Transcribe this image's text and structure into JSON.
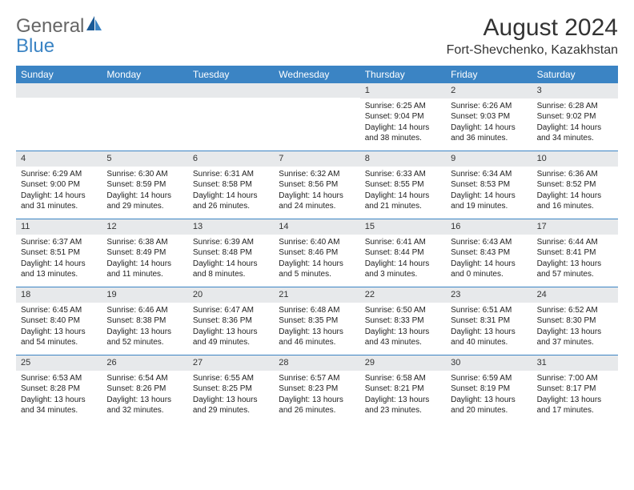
{
  "brand": {
    "general": "General",
    "blue": "Blue"
  },
  "title": "August 2024",
  "location": "Fort-Shevchenko, Kazakhstan",
  "colors": {
    "header_bg": "#3b84c4",
    "header_text": "#ffffff",
    "daynum_bg": "#e7e9eb",
    "text": "#222222",
    "divider": "#3b84c4",
    "page_bg": "#ffffff"
  },
  "dayNames": [
    "Sunday",
    "Monday",
    "Tuesday",
    "Wednesday",
    "Thursday",
    "Friday",
    "Saturday"
  ],
  "weeks": [
    [
      {
        "day": "",
        "sunrise": "",
        "sunset": "",
        "daylight": ""
      },
      {
        "day": "",
        "sunrise": "",
        "sunset": "",
        "daylight": ""
      },
      {
        "day": "",
        "sunrise": "",
        "sunset": "",
        "daylight": ""
      },
      {
        "day": "",
        "sunrise": "",
        "sunset": "",
        "daylight": ""
      },
      {
        "day": "1",
        "sunrise": "Sunrise: 6:25 AM",
        "sunset": "Sunset: 9:04 PM",
        "daylight": "Daylight: 14 hours and 38 minutes."
      },
      {
        "day": "2",
        "sunrise": "Sunrise: 6:26 AM",
        "sunset": "Sunset: 9:03 PM",
        "daylight": "Daylight: 14 hours and 36 minutes."
      },
      {
        "day": "3",
        "sunrise": "Sunrise: 6:28 AM",
        "sunset": "Sunset: 9:02 PM",
        "daylight": "Daylight: 14 hours and 34 minutes."
      }
    ],
    [
      {
        "day": "4",
        "sunrise": "Sunrise: 6:29 AM",
        "sunset": "Sunset: 9:00 PM",
        "daylight": "Daylight: 14 hours and 31 minutes."
      },
      {
        "day": "5",
        "sunrise": "Sunrise: 6:30 AM",
        "sunset": "Sunset: 8:59 PM",
        "daylight": "Daylight: 14 hours and 29 minutes."
      },
      {
        "day": "6",
        "sunrise": "Sunrise: 6:31 AM",
        "sunset": "Sunset: 8:58 PM",
        "daylight": "Daylight: 14 hours and 26 minutes."
      },
      {
        "day": "7",
        "sunrise": "Sunrise: 6:32 AM",
        "sunset": "Sunset: 8:56 PM",
        "daylight": "Daylight: 14 hours and 24 minutes."
      },
      {
        "day": "8",
        "sunrise": "Sunrise: 6:33 AM",
        "sunset": "Sunset: 8:55 PM",
        "daylight": "Daylight: 14 hours and 21 minutes."
      },
      {
        "day": "9",
        "sunrise": "Sunrise: 6:34 AM",
        "sunset": "Sunset: 8:53 PM",
        "daylight": "Daylight: 14 hours and 19 minutes."
      },
      {
        "day": "10",
        "sunrise": "Sunrise: 6:36 AM",
        "sunset": "Sunset: 8:52 PM",
        "daylight": "Daylight: 14 hours and 16 minutes."
      }
    ],
    [
      {
        "day": "11",
        "sunrise": "Sunrise: 6:37 AM",
        "sunset": "Sunset: 8:51 PM",
        "daylight": "Daylight: 14 hours and 13 minutes."
      },
      {
        "day": "12",
        "sunrise": "Sunrise: 6:38 AM",
        "sunset": "Sunset: 8:49 PM",
        "daylight": "Daylight: 14 hours and 11 minutes."
      },
      {
        "day": "13",
        "sunrise": "Sunrise: 6:39 AM",
        "sunset": "Sunset: 8:48 PM",
        "daylight": "Daylight: 14 hours and 8 minutes."
      },
      {
        "day": "14",
        "sunrise": "Sunrise: 6:40 AM",
        "sunset": "Sunset: 8:46 PM",
        "daylight": "Daylight: 14 hours and 5 minutes."
      },
      {
        "day": "15",
        "sunrise": "Sunrise: 6:41 AM",
        "sunset": "Sunset: 8:44 PM",
        "daylight": "Daylight: 14 hours and 3 minutes."
      },
      {
        "day": "16",
        "sunrise": "Sunrise: 6:43 AM",
        "sunset": "Sunset: 8:43 PM",
        "daylight": "Daylight: 14 hours and 0 minutes."
      },
      {
        "day": "17",
        "sunrise": "Sunrise: 6:44 AM",
        "sunset": "Sunset: 8:41 PM",
        "daylight": "Daylight: 13 hours and 57 minutes."
      }
    ],
    [
      {
        "day": "18",
        "sunrise": "Sunrise: 6:45 AM",
        "sunset": "Sunset: 8:40 PM",
        "daylight": "Daylight: 13 hours and 54 minutes."
      },
      {
        "day": "19",
        "sunrise": "Sunrise: 6:46 AM",
        "sunset": "Sunset: 8:38 PM",
        "daylight": "Daylight: 13 hours and 52 minutes."
      },
      {
        "day": "20",
        "sunrise": "Sunrise: 6:47 AM",
        "sunset": "Sunset: 8:36 PM",
        "daylight": "Daylight: 13 hours and 49 minutes."
      },
      {
        "day": "21",
        "sunrise": "Sunrise: 6:48 AM",
        "sunset": "Sunset: 8:35 PM",
        "daylight": "Daylight: 13 hours and 46 minutes."
      },
      {
        "day": "22",
        "sunrise": "Sunrise: 6:50 AM",
        "sunset": "Sunset: 8:33 PM",
        "daylight": "Daylight: 13 hours and 43 minutes."
      },
      {
        "day": "23",
        "sunrise": "Sunrise: 6:51 AM",
        "sunset": "Sunset: 8:31 PM",
        "daylight": "Daylight: 13 hours and 40 minutes."
      },
      {
        "day": "24",
        "sunrise": "Sunrise: 6:52 AM",
        "sunset": "Sunset: 8:30 PM",
        "daylight": "Daylight: 13 hours and 37 minutes."
      }
    ],
    [
      {
        "day": "25",
        "sunrise": "Sunrise: 6:53 AM",
        "sunset": "Sunset: 8:28 PM",
        "daylight": "Daylight: 13 hours and 34 minutes."
      },
      {
        "day": "26",
        "sunrise": "Sunrise: 6:54 AM",
        "sunset": "Sunset: 8:26 PM",
        "daylight": "Daylight: 13 hours and 32 minutes."
      },
      {
        "day": "27",
        "sunrise": "Sunrise: 6:55 AM",
        "sunset": "Sunset: 8:25 PM",
        "daylight": "Daylight: 13 hours and 29 minutes."
      },
      {
        "day": "28",
        "sunrise": "Sunrise: 6:57 AM",
        "sunset": "Sunset: 8:23 PM",
        "daylight": "Daylight: 13 hours and 26 minutes."
      },
      {
        "day": "29",
        "sunrise": "Sunrise: 6:58 AM",
        "sunset": "Sunset: 8:21 PM",
        "daylight": "Daylight: 13 hours and 23 minutes."
      },
      {
        "day": "30",
        "sunrise": "Sunrise: 6:59 AM",
        "sunset": "Sunset: 8:19 PM",
        "daylight": "Daylight: 13 hours and 20 minutes."
      },
      {
        "day": "31",
        "sunrise": "Sunrise: 7:00 AM",
        "sunset": "Sunset: 8:17 PM",
        "daylight": "Daylight: 13 hours and 17 minutes."
      }
    ]
  ]
}
